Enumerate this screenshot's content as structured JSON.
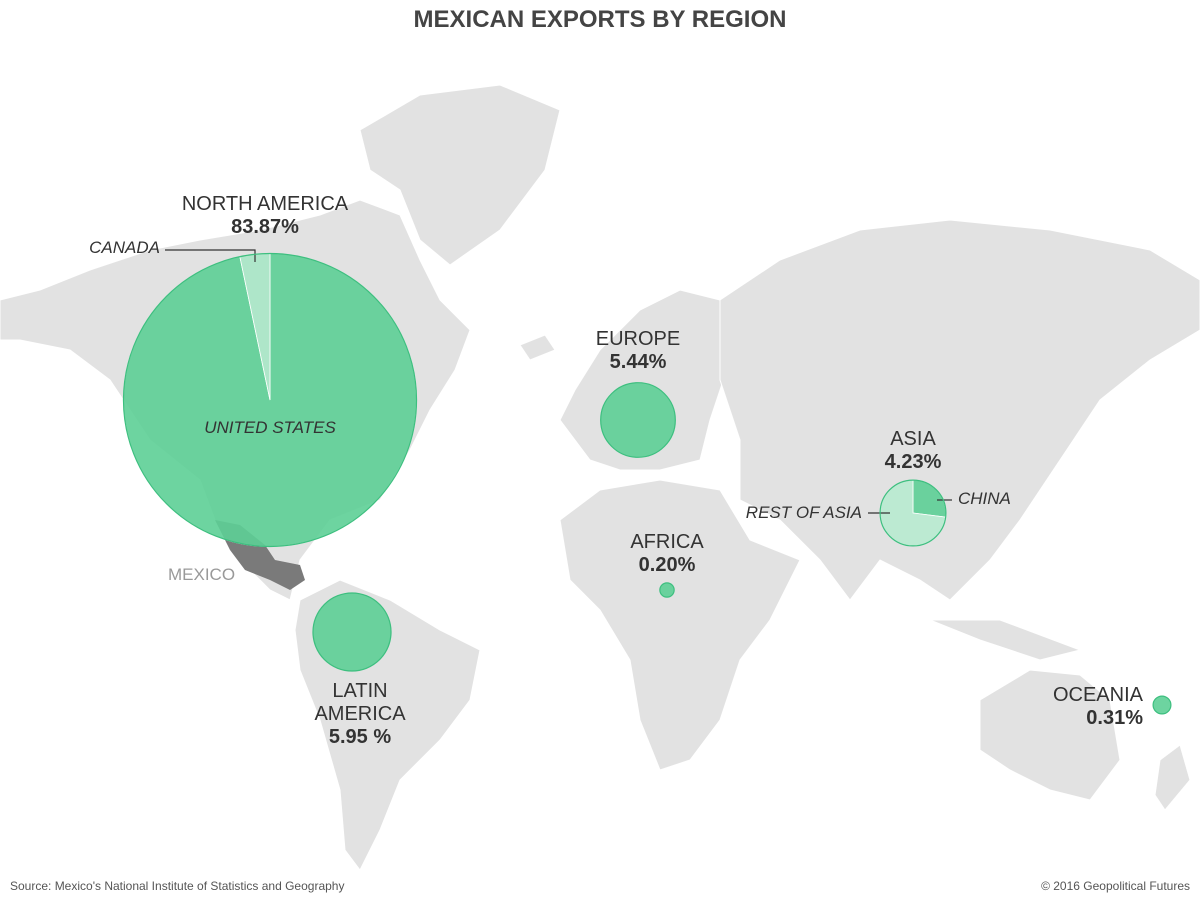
{
  "title": "MEXICAN EXPORTS BY REGION",
  "regions": [
    {
      "name": "NORTH AMERICA",
      "value": 83.87,
      "value_label": "83.87%",
      "parts": [
        {
          "name": "UNITED STATES",
          "share": 96.7
        },
        {
          "name": "CANADA",
          "share": 3.3
        }
      ]
    },
    {
      "name": "EUROPE",
      "value": 5.44,
      "value_label": "5.44%"
    },
    {
      "name": "ASIA",
      "value": 4.23,
      "value_label": "4.23%",
      "parts": [
        {
          "name": "CHINA",
          "share": 27
        },
        {
          "name": "REST OF ASIA",
          "share": 73
        }
      ]
    },
    {
      "name": "AFRICA",
      "value": 0.2,
      "value_label": "0.20%"
    },
    {
      "name": "LATIN AMERICA",
      "value": 5.95,
      "value_label": "5.95 %"
    },
    {
      "name": "OCEANIA",
      "value": 0.31,
      "value_label": "0.31%"
    }
  ],
  "highlight": "MEXICO",
  "source": "Source: Mexico's National Institute of Statistics and Geography",
  "credit": "© 2016 Geopolitical Futures"
}
